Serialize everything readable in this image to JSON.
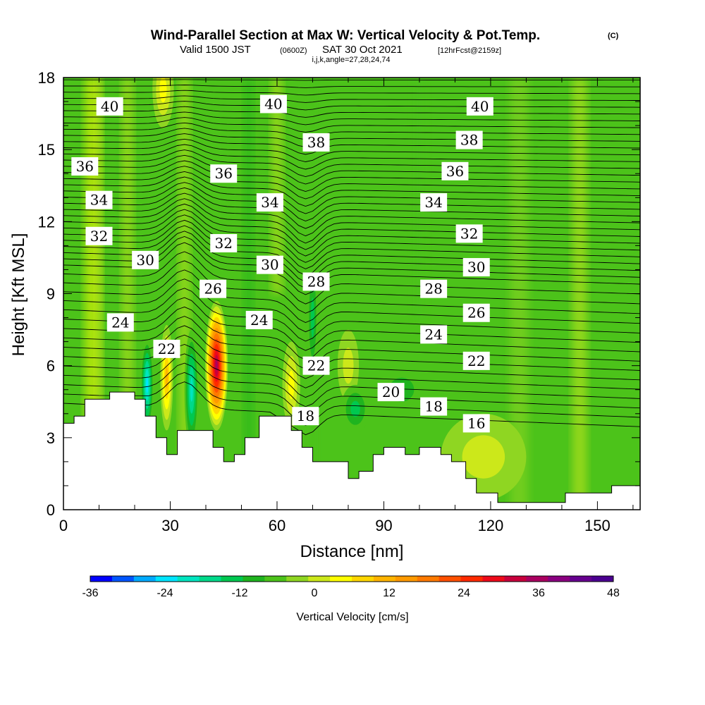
{
  "title": {
    "main": "Wind-Parallel Section at Max W: Vertical Velocity & Pot.Temp.",
    "copyright": "(C)",
    "valid_prefix": "Valid 1500 JST",
    "valid_utc": "(0600Z)",
    "valid_date": "SAT 30 Oct 2021",
    "forecast": "[12hrFcst@2159z]",
    "indices": "i,j,k,angle=27,28,24,74"
  },
  "chart_data": {
    "type": "heatmap",
    "xlabel": "Distance [nm]",
    "ylabel": "Height [Kft MSL]",
    "xlim": [
      0,
      162
    ],
    "ylim": [
      0,
      18
    ],
    "x_ticks": [
      0,
      30,
      60,
      90,
      120,
      150
    ],
    "y_ticks": [
      0,
      3,
      6,
      9,
      12,
      15,
      18
    ],
    "colorbar": {
      "label": "Vertical Velocity [cm/s]",
      "min": -36,
      "max": 48,
      "step": 4,
      "tick_labels": [
        "-36",
        "-24",
        "-12",
        "0",
        "12",
        "24",
        "36",
        "48"
      ],
      "tick_values": [
        -36,
        -24,
        -12,
        0,
        12,
        24,
        36,
        48
      ],
      "colors": [
        "#0000ff",
        "#0055ff",
        "#00aaff",
        "#00e5ff",
        "#00e5c0",
        "#00d98a",
        "#00c850",
        "#1fb41f",
        "#4cc31a",
        "#8fd622",
        "#cce81a",
        "#ffff00",
        "#ffd600",
        "#ffb400",
        "#ff9a00",
        "#ff7a00",
        "#ff5000",
        "#ff2a00",
        "#ee0a1a",
        "#c8003c",
        "#aa0060",
        "#8a0080",
        "#66008f",
        "#4b0090"
      ]
    },
    "terrain_profile": [
      [
        0,
        3.6
      ],
      [
        3,
        3.6
      ],
      [
        3,
        3.9
      ],
      [
        6,
        3.9
      ],
      [
        6,
        4.6
      ],
      [
        13,
        4.6
      ],
      [
        13,
        4.9
      ],
      [
        20,
        4.9
      ],
      [
        20,
        4.6
      ],
      [
        23,
        4.6
      ],
      [
        23,
        3.9
      ],
      [
        26,
        3.9
      ],
      [
        26,
        3.0
      ],
      [
        29,
        3.0
      ],
      [
        29,
        2.3
      ],
      [
        32,
        2.3
      ],
      [
        32,
        3.3
      ],
      [
        42,
        3.3
      ],
      [
        42,
        2.6
      ],
      [
        45,
        2.6
      ],
      [
        45,
        2.0
      ],
      [
        48,
        2.0
      ],
      [
        48,
        2.3
      ],
      [
        51,
        2.3
      ],
      [
        51,
        3.0
      ],
      [
        55,
        3.0
      ],
      [
        55,
        3.9
      ],
      [
        64,
        3.9
      ],
      [
        64,
        3.3
      ],
      [
        67,
        3.3
      ],
      [
        67,
        2.6
      ],
      [
        70,
        2.6
      ],
      [
        70,
        2.0
      ],
      [
        80,
        2.0
      ],
      [
        80,
        1.3
      ],
      [
        83,
        1.3
      ],
      [
        83,
        1.6
      ],
      [
        87,
        1.6
      ],
      [
        87,
        2.3
      ],
      [
        90,
        2.3
      ],
      [
        90,
        2.6
      ],
      [
        96,
        2.6
      ],
      [
        96,
        2.3
      ],
      [
        100,
        2.3
      ],
      [
        100,
        2.6
      ],
      [
        106,
        2.6
      ],
      [
        106,
        2.3
      ],
      [
        109,
        2.3
      ],
      [
        109,
        2.0
      ],
      [
        113,
        2.0
      ],
      [
        113,
        1.3
      ],
      [
        116,
        1.3
      ],
      [
        116,
        0.7
      ],
      [
        122,
        0.7
      ],
      [
        122,
        0.3
      ],
      [
        141,
        0.3
      ],
      [
        141,
        0.7
      ],
      [
        154,
        0.7
      ],
      [
        154,
        1.0
      ],
      [
        162,
        1.0
      ]
    ],
    "w_features": [
      {
        "x": 43,
        "y": 6.0,
        "rx": 3.2,
        "ry": 2.7,
        "w": 48
      },
      {
        "x": 29,
        "y": 5.5,
        "rx": 1.8,
        "ry": 2.2,
        "w": 20
      },
      {
        "x": 23.5,
        "y": 5.2,
        "rx": 1.8,
        "ry": 2.0,
        "w": -22
      },
      {
        "x": 36,
        "y": 5.0,
        "rx": 2.0,
        "ry": 2.5,
        "w": -18
      },
      {
        "x": 28,
        "y": 17.5,
        "rx": 3.0,
        "ry": 1.6,
        "w": 12
      },
      {
        "x": 64,
        "y": 5.2,
        "rx": 2.5,
        "ry": 1.8,
        "w": 10
      },
      {
        "x": 80,
        "y": 6.0,
        "rx": 3.0,
        "ry": 1.5,
        "w": 6
      },
      {
        "x": 82,
        "y": 4.2,
        "rx": 4.0,
        "ry": 1.0,
        "w": -10
      },
      {
        "x": 95,
        "y": 5.0,
        "rx": 7.0,
        "ry": 1.0,
        "w": -8
      },
      {
        "x": 118,
        "y": 2.2,
        "rx": 12.0,
        "ry": 1.8,
        "w": 6
      },
      {
        "x": 70,
        "y": 8.0,
        "rx": 1.5,
        "ry": 2.5,
        "w": -10
      }
    ],
    "theta_labels": [
      {
        "text": "40",
        "x": 13,
        "y": 16.8
      },
      {
        "text": "40",
        "x": 59,
        "y": 16.9
      },
      {
        "text": "40",
        "x": 117,
        "y": 16.8
      },
      {
        "text": "38",
        "x": 71,
        "y": 15.3
      },
      {
        "text": "38",
        "x": 114,
        "y": 15.4
      },
      {
        "text": "36",
        "x": 6,
        "y": 14.3
      },
      {
        "text": "36",
        "x": 45,
        "y": 14.0
      },
      {
        "text": "36",
        "x": 110,
        "y": 14.1
      },
      {
        "text": "34",
        "x": 10,
        "y": 12.9
      },
      {
        "text": "34",
        "x": 58,
        "y": 12.8
      },
      {
        "text": "34",
        "x": 104,
        "y": 12.8
      },
      {
        "text": "32",
        "x": 10,
        "y": 11.4
      },
      {
        "text": "32",
        "x": 45,
        "y": 11.1
      },
      {
        "text": "32",
        "x": 114,
        "y": 11.5
      },
      {
        "text": "30",
        "x": 23,
        "y": 10.4
      },
      {
        "text": "30",
        "x": 58,
        "y": 10.2
      },
      {
        "text": "30",
        "x": 116,
        "y": 10.1
      },
      {
        "text": "28",
        "x": 71,
        "y": 9.5
      },
      {
        "text": "28",
        "x": 104,
        "y": 9.2
      },
      {
        "text": "26",
        "x": 42,
        "y": 9.2
      },
      {
        "text": "26",
        "x": 116,
        "y": 8.2
      },
      {
        "text": "24",
        "x": 16,
        "y": 7.8
      },
      {
        "text": "24",
        "x": 55,
        "y": 7.9
      },
      {
        "text": "24",
        "x": 104,
        "y": 7.3
      },
      {
        "text": "22",
        "x": 29,
        "y": 6.7
      },
      {
        "text": "22",
        "x": 71,
        "y": 6.0
      },
      {
        "text": "22",
        "x": 116,
        "y": 6.2
      },
      {
        "text": "20",
        "x": 92,
        "y": 4.9
      },
      {
        "text": "18",
        "x": 68,
        "y": 3.9
      },
      {
        "text": "18",
        "x": 104,
        "y": 4.3
      },
      {
        "text": "16",
        "x": 116,
        "y": 3.6
      }
    ]
  },
  "colors": {
    "background_field": "#4cc31a",
    "terrain": "#ffffff",
    "contour_line": "#000000"
  }
}
